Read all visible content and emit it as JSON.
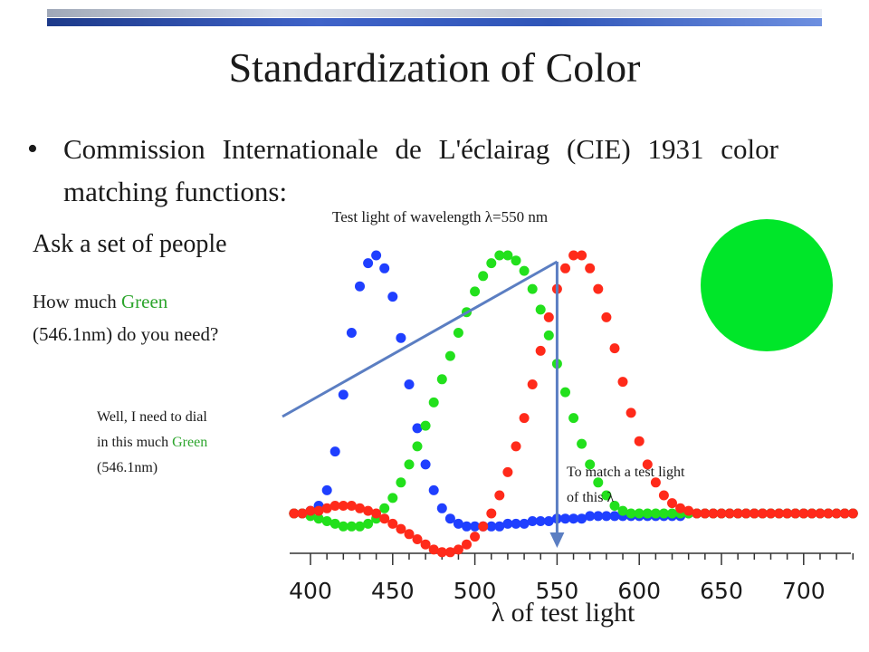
{
  "slide": {
    "title": "Standardization of Color",
    "bullet": "Commission Internationale de L'éclairag (CIE) 1931 color matching functions:",
    "test_light_label": "Test light of wavelength λ=550 nm",
    "ask": "Ask a set of people",
    "question_prefix": "How much ",
    "question_green": "Green",
    "question_line2": "(546.1nm) do you need?",
    "reply_line1": "Well, I need to dial",
    "reply_line2_prefix": "in this much ",
    "reply_line2_green": "Green",
    "reply_line3": "(546.1nm)",
    "match_line1": "To match a test light",
    "match_line2": "of this λ",
    "xlabel": "λ of test light",
    "colors": {
      "title_bar_blue": "#2f55b8",
      "green_text": "#2da52d",
      "arrow": "#5b7ec2",
      "swatch": "#00e629"
    }
  },
  "chart_data": {
    "type": "scatter",
    "xlim": [
      390,
      735
    ],
    "ticks": [
      400,
      450,
      500,
      550,
      600,
      650,
      700
    ],
    "test_wavelength": 550,
    "series": [
      {
        "color": "#1f3fff",
        "x": [
          390,
          395,
          400,
          405,
          410,
          415,
          420,
          425,
          430,
          435,
          440,
          445,
          450,
          455,
          460,
          465,
          470,
          475,
          480,
          485,
          490,
          495,
          500,
          505,
          510,
          515,
          520,
          525,
          530,
          535,
          540,
          545,
          550,
          555,
          560,
          565,
          570,
          575,
          580,
          585,
          590,
          595,
          600,
          605,
          610,
          615,
          620,
          625,
          630,
          635,
          640,
          645,
          650,
          655,
          660,
          665,
          670,
          675,
          680,
          685,
          690,
          695,
          700,
          705,
          710,
          715,
          720,
          725,
          730
        ],
        "y": [
          0.0,
          0.0,
          0.01,
          0.03,
          0.09,
          0.24,
          0.46,
          0.7,
          0.88,
          0.97,
          1.0,
          0.95,
          0.84,
          0.68,
          0.5,
          0.33,
          0.19,
          0.09,
          0.02,
          -0.02,
          -0.04,
          -0.05,
          -0.05,
          -0.05,
          -0.05,
          -0.05,
          -0.04,
          -0.04,
          -0.04,
          -0.03,
          -0.03,
          -0.03,
          -0.02,
          -0.02,
          -0.02,
          -0.02,
          -0.01,
          -0.01,
          -0.01,
          -0.01,
          -0.01,
          -0.01,
          -0.01,
          -0.01,
          -0.01,
          -0.01,
          -0.01,
          -0.01,
          0.0,
          0.0,
          0.0,
          0.0,
          0.0,
          0.0,
          0.0,
          0.0,
          0.0,
          0.0,
          0.0,
          0.0,
          0.0,
          0.0,
          0.0,
          0.0,
          0.0,
          0.0,
          0.0,
          0.0,
          0.0
        ]
      },
      {
        "color": "#22e01c",
        "x": [
          390,
          395,
          400,
          405,
          410,
          415,
          420,
          425,
          430,
          435,
          440,
          445,
          450,
          455,
          460,
          465,
          470,
          475,
          480,
          485,
          490,
          495,
          500,
          505,
          510,
          515,
          520,
          525,
          530,
          535,
          540,
          545,
          550,
          555,
          560,
          565,
          570,
          575,
          580,
          585,
          590,
          595,
          600,
          605,
          610,
          615,
          620,
          625,
          630,
          635,
          640,
          645,
          650,
          655,
          660,
          665,
          670,
          675,
          680,
          685,
          690,
          695,
          700,
          705,
          710,
          715,
          720,
          725,
          730
        ],
        "y": [
          0.0,
          0.0,
          -0.01,
          -0.02,
          -0.03,
          -0.04,
          -0.05,
          -0.05,
          -0.05,
          -0.04,
          -0.02,
          0.02,
          0.06,
          0.12,
          0.19,
          0.26,
          0.34,
          0.43,
          0.52,
          0.61,
          0.7,
          0.78,
          0.86,
          0.92,
          0.97,
          1.0,
          1.0,
          0.98,
          0.94,
          0.87,
          0.79,
          0.69,
          0.58,
          0.47,
          0.37,
          0.27,
          0.19,
          0.12,
          0.07,
          0.03,
          0.01,
          0.0,
          0.0,
          0.0,
          0.0,
          0.0,
          0.0,
          0.0,
          0.0,
          0.0,
          0.0,
          0.0,
          0.0,
          0.0,
          0.0,
          0.0,
          0.0,
          0.0,
          0.0,
          0.0,
          0.0,
          0.0,
          0.0,
          0.0,
          0.0,
          0.0,
          0.0,
          0.0,
          0.0
        ]
      },
      {
        "color": "#ff2a1a",
        "x": [
          390,
          395,
          400,
          405,
          410,
          415,
          420,
          425,
          430,
          435,
          440,
          445,
          450,
          455,
          460,
          465,
          470,
          475,
          480,
          485,
          490,
          495,
          500,
          505,
          510,
          515,
          520,
          525,
          530,
          535,
          540,
          545,
          550,
          555,
          560,
          565,
          570,
          575,
          580,
          585,
          590,
          595,
          600,
          605,
          610,
          615,
          620,
          625,
          630,
          635,
          640,
          645,
          650,
          655,
          660,
          665,
          670,
          675,
          680,
          685,
          690,
          695,
          700,
          705,
          710,
          715,
          720,
          725,
          730
        ],
        "y": [
          0.0,
          0.0,
          0.01,
          0.01,
          0.02,
          0.03,
          0.03,
          0.03,
          0.02,
          0.01,
          0.0,
          -0.02,
          -0.04,
          -0.06,
          -0.08,
          -0.1,
          -0.12,
          -0.14,
          -0.15,
          -0.15,
          -0.14,
          -0.12,
          -0.09,
          -0.05,
          0.0,
          0.07,
          0.16,
          0.26,
          0.37,
          0.5,
          0.63,
          0.76,
          0.87,
          0.95,
          1.0,
          1.0,
          0.95,
          0.87,
          0.76,
          0.64,
          0.51,
          0.39,
          0.28,
          0.19,
          0.12,
          0.07,
          0.04,
          0.02,
          0.01,
          0.0,
          0.0,
          0.0,
          0.0,
          0.0,
          0.0,
          0.0,
          0.0,
          0.0,
          0.0,
          0.0,
          0.0,
          0.0,
          0.0,
          0.0,
          0.0,
          0.0,
          0.0,
          0.0,
          0.0
        ]
      }
    ]
  }
}
